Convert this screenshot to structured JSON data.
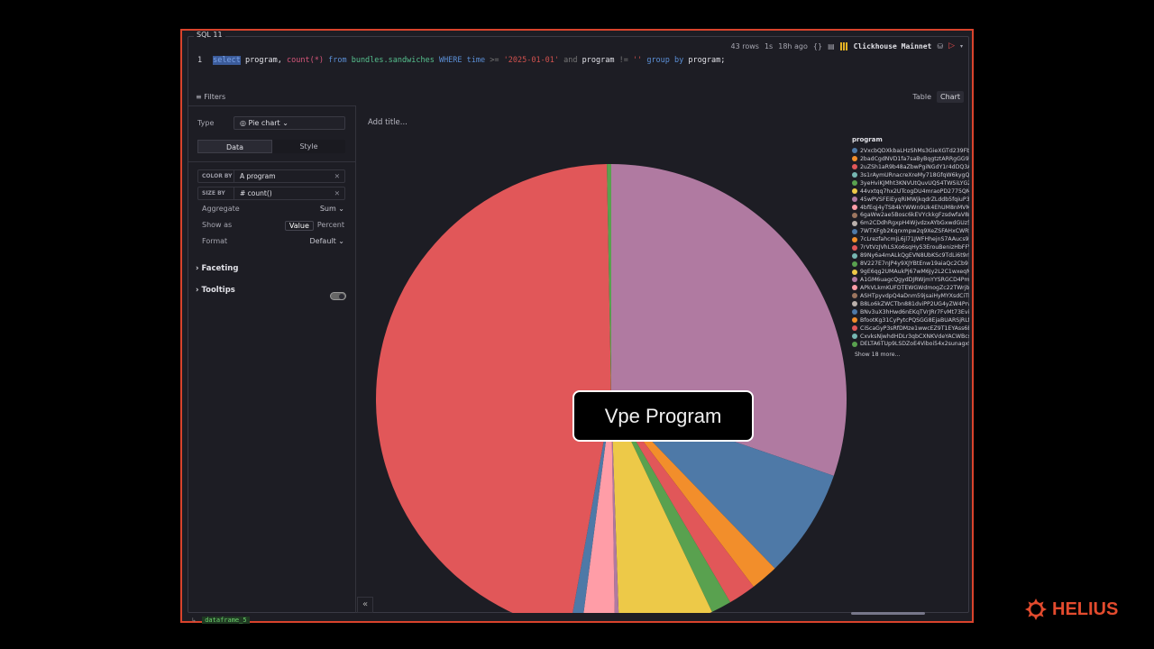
{
  "cell": {
    "label": "SQL 11"
  },
  "topbar": {
    "rows": "43 rows",
    "duration": "1s",
    "ago": "18h ago",
    "braces": "{}",
    "db": "Clickhouse Mainnet"
  },
  "query": {
    "line": "1",
    "select": "select",
    "rest1": " program, ",
    "count": "count(*)",
    "from": " from ",
    "table": "bundles.sandwiches",
    "where": " WHERE ",
    "time": "time",
    "gte": " >= ",
    "date": "'2025-01-01'",
    "and": " and ",
    "program": "program",
    "neq": " != ",
    "empty": "''",
    "group": " group by ",
    "program2": "program;"
  },
  "filters": {
    "label": "≡ Filters"
  },
  "view_tabs": {
    "table": "Table",
    "chart": "Chart"
  },
  "config": {
    "type_label": "Type",
    "type_value": "◎ Pie chart ⌄",
    "tab_data": "Data",
    "tab_style": "Style",
    "color_by_key": "COLOR BY",
    "color_by_value": "A  program",
    "size_by_key": "SIZE BY",
    "size_by_value": "#  count()",
    "remove": "✕",
    "aggregate_label": "Aggregate",
    "aggregate_value": "Sum ⌄",
    "show_as_label": "Show as",
    "show_as_value": "Value",
    "show_as_percent": "Percent",
    "format_label": "Format",
    "format_value": "Default ⌄",
    "faceting": "›  Faceting",
    "tooltips": "›  Tooltips"
  },
  "chart": {
    "title_placeholder": "Add title...",
    "tooltip": "Vpe Program",
    "legend_title": "program",
    "show_more": "Show 18 more...",
    "collapse": "«"
  },
  "legend": [
    {
      "label": "2VxcbQDXkbaLHzShMs3GieXGTd239FbA",
      "color": "#4e79a7"
    },
    {
      "label": "2badCgdNVD1fa7saByBqgtztARRgGG9V",
      "color": "#f28e2b"
    },
    {
      "label": "2uZSh1aR9b48aZbwPgiNGdY1r4dDQ3A",
      "color": "#e15759"
    },
    {
      "label": "3s1rAymURnacreXreMy718GfqW6kygQs",
      "color": "#76b7b2"
    },
    {
      "label": "3yeHviKJMht3KNVUtQuvUQS4TWSiLYG2",
      "color": "#59a14f"
    },
    {
      "label": "44vxtqq7hx2UTcogDU4mraoPD2775QM",
      "color": "#edc948"
    },
    {
      "label": "45wPVSFEiEyqRiMWjkqdrZLddb5fqiuP3l",
      "color": "#b07aa1"
    },
    {
      "label": "4bfEqj4yTS84kYWWn9Uk4EhUM8nMVM",
      "color": "#ff9da7"
    },
    {
      "label": "6gaWw2ae5Bosc6kEVYckkgFzsdwfaV8rq",
      "color": "#9c755f"
    },
    {
      "label": "6m2CDdhRgxpH4WjvdzxAYbGxwdGUz5f",
      "color": "#bab0ac"
    },
    {
      "label": "7WTXFgb2Kqrxmpw2q9XeZSFAHxCWRf",
      "color": "#4e79a7"
    },
    {
      "label": "7cLrezfahcmjL6jl71JWFHhejnS7AAucs9",
      "color": "#f28e2b"
    },
    {
      "label": "7rVtVzJVhLSXo6sqHyS3ErouBenizHbFFV",
      "color": "#e15759"
    },
    {
      "label": "89Ny6a4mALkQgEVN8UbKSc9TdLi6t9rF",
      "color": "#76b7b2"
    },
    {
      "label": "8V227E7nJP4y9XJYBtEnw19aiaQc2Cb9",
      "color": "#59a14f"
    },
    {
      "label": "9gE6qg2UMAukPj67wM6Jy2L2C1wxeqN",
      "color": "#edc948"
    },
    {
      "label": "A1GM6uagcQgydDJRWjmYYSRGCD4Pm",
      "color": "#b07aa1"
    },
    {
      "label": "APkVLkmKUFDTEWGWdmogZc22TWrjb",
      "color": "#ff9da7"
    },
    {
      "label": "ASHTpyvdpQ4aDnm59jsaiHyMYXsdCiTK",
      "color": "#9c755f"
    },
    {
      "label": "B8Lo6kZWCTbn881dviPP2UG4yZW4Prv",
      "color": "#bab0ac"
    },
    {
      "label": "BNv3uX3hHwd6nEKqTVrJRr7FvMt73Evit",
      "color": "#4e79a7"
    },
    {
      "label": "BfootKg31CyPytcPQSGG8EjaBUARSjRLfi",
      "color": "#f28e2b"
    },
    {
      "label": "CiScaGyP3sRfDMze1wwcEZ9T1EYAss6B",
      "color": "#e15759"
    },
    {
      "label": "CxvksNjwhdHDLr3qbCXNKVdeYACWBcsf",
      "color": "#76b7b2"
    },
    {
      "label": "DELTA6TUp9LSDZoE4Viboi54x2sunagxf",
      "color": "#59a14f"
    }
  ],
  "footer": {
    "icon": "↳",
    "dataframe": "dataframe_5"
  },
  "brand": {
    "name": "HELIUS",
    "color": "#e34b2e"
  },
  "chart_data": {
    "type": "pie",
    "title": "",
    "color_by": "program",
    "size_by": "count()",
    "note": "Approximate slice shares (percent) estimated from angles, clockwise from 12 o'clock",
    "slices": [
      {
        "label": "45wPVSFEiEyqRiMWjkqdrZLddb5fqiuP3l",
        "value": 30.3,
        "color": "#b07aa1"
      },
      {
        "label": "7WTXFgb2Kqrxmpw2q9XeZSFAHxCWRf",
        "value": 7.5,
        "color": "#4e79a7"
      },
      {
        "label": "7cLrezfahcmjL6jl71JWFHhejnS7AAucs9",
        "value": 1.9,
        "color": "#f28e2b"
      },
      {
        "label": "7rVtVzJVhLSXo6sqHyS3ErouBenizHbFFV",
        "value": 1.9,
        "color": "#e15759"
      },
      {
        "label": "8V227E7nJP4y9XJYBtEnw19aiaQc2Cb9",
        "value": 1.4,
        "color": "#59a14f"
      },
      {
        "label": "9gE6qg2UMAukPj67wM6Jy2L2C1wxeqN",
        "value": 6.5,
        "color": "#edc948"
      },
      {
        "label": "A1GM6uagcQgydDJRWjmYYSRGCD4Pm",
        "value": 0.3,
        "color": "#b07aa1"
      },
      {
        "label": "APkVLkmKUFDTEWGWdmogZc22TWrjb",
        "value": 2.3,
        "color": "#ff9da7"
      },
      {
        "label": "BNv3uX3hHwd6nEKqTVrJRr7FvMt73Evit",
        "value": 0.8,
        "color": "#4e79a7"
      },
      {
        "label": "Vpe Program",
        "value": 46.9,
        "color": "#e15759"
      },
      {
        "label": "DELTA6TUp9LSDZoE4Viboi54x2sunagxf",
        "value": 0.3,
        "color": "#59a14f"
      }
    ]
  }
}
